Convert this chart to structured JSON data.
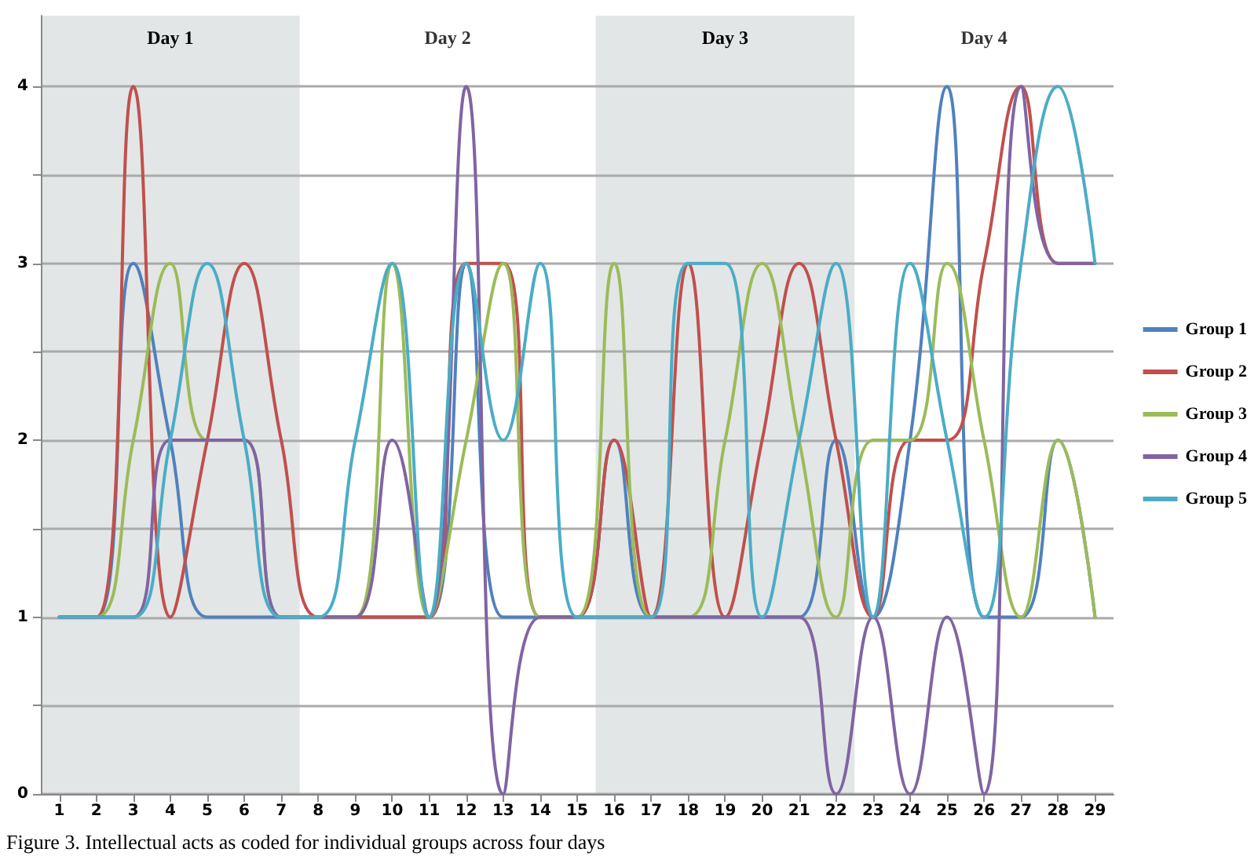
{
  "chart_data": {
    "type": "line",
    "x": [
      1,
      2,
      3,
      4,
      5,
      6,
      7,
      8,
      9,
      10,
      11,
      12,
      13,
      14,
      15,
      16,
      17,
      18,
      19,
      20,
      21,
      22,
      23,
      24,
      25,
      26,
      27,
      28,
      29
    ],
    "xlim": [
      0.5,
      29.5
    ],
    "xticks": [
      1,
      2,
      3,
      4,
      5,
      6,
      7,
      8,
      9,
      10,
      11,
      12,
      13,
      14,
      15,
      16,
      17,
      18,
      19,
      20,
      21,
      22,
      23,
      24,
      25,
      26,
      27,
      28,
      29
    ],
    "ylim": [
      0,
      4.4
    ],
    "yticks": [
      0,
      {
        "value": 0.5,
        "label": null
      },
      1,
      {
        "value": 1.5,
        "label": null
      },
      2,
      {
        "value": 2.5,
        "label": null
      },
      3,
      {
        "value": 3.5,
        "label": null
      },
      4
    ],
    "grid": "y",
    "legend": "right",
    "marker": "none",
    "line_style": "solid",
    "series": [
      {
        "name": "Group 1",
        "color": "#4f81bd",
        "values": [
          1,
          1,
          3,
          2,
          1,
          1,
          1,
          1,
          1,
          1,
          1,
          3,
          1,
          1,
          1,
          2,
          1,
          1,
          1,
          1,
          1,
          2,
          1,
          2,
          4,
          1,
          1,
          2,
          1
        ]
      },
      {
        "name": "Group 2",
        "color": "#c0504d",
        "values": [
          1,
          1,
          4,
          1,
          2,
          3,
          2,
          1,
          1,
          1,
          1,
          3,
          3,
          1,
          1,
          2,
          1,
          3,
          1,
          2,
          3,
          2,
          1,
          2,
          2,
          3,
          4,
          3,
          3
        ]
      },
      {
        "name": "Group 3",
        "color": "#9bbb59",
        "values": [
          1,
          1,
          2,
          3,
          2,
          2,
          1,
          1,
          1,
          3,
          1,
          2,
          3,
          1,
          1,
          3,
          1,
          1,
          2,
          3,
          2,
          1,
          2,
          2,
          3,
          2,
          1,
          2,
          1
        ]
      },
      {
        "name": "Group 4",
        "color": "#8064a2",
        "values": [
          1,
          1,
          1,
          2,
          2,
          2,
          1,
          1,
          1,
          2,
          1,
          4,
          0,
          1,
          1,
          1,
          1,
          1,
          1,
          1,
          1,
          0,
          1,
          0,
          1,
          0,
          4,
          3,
          3
        ]
      },
      {
        "name": "Group 5",
        "color": "#4bacc6",
        "values": [
          1,
          1,
          1,
          2,
          3,
          2,
          1,
          1,
          2,
          3,
          1,
          3,
          2,
          3,
          1,
          1,
          1,
          3,
          3,
          1,
          2,
          3,
          1,
          3,
          2,
          1,
          3,
          4,
          3
        ]
      }
    ],
    "bands": [
      {
        "axis": "x",
        "from": 0.5,
        "to": 7.5,
        "label": "Day 1",
        "color": "#e3e6e6"
      },
      {
        "axis": "x",
        "from": 15.5,
        "to": 22.5,
        "label": "Day 3",
        "color": "#e3e6e6"
      }
    ],
    "annotations": [
      "Day 2",
      "Day 4",
      "Figure 3. Intellectual acts as coded for individual groups across four days"
    ]
  }
}
